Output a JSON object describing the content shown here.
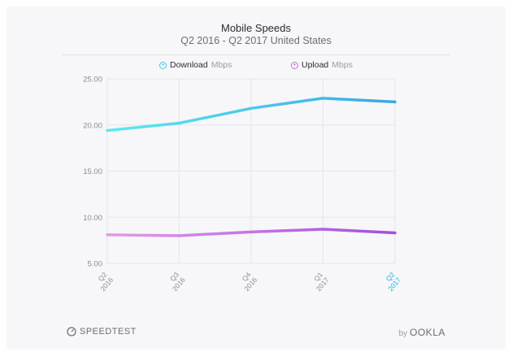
{
  "chart_data": {
    "type": "line",
    "title": "Mobile Speeds",
    "subtitle": "Q2 2016 - Q2 2017 United States",
    "categories": [
      [
        "Q2",
        "2016"
      ],
      [
        "Q3",
        "2016"
      ],
      [
        "Q4",
        "2016"
      ],
      [
        "Q1",
        "2017"
      ],
      [
        "Q2",
        "2017"
      ]
    ],
    "highlight_category_index": 4,
    "ylim": [
      5,
      25
    ],
    "yticks": [
      "25.00",
      "20.00",
      "15.00",
      "10.00",
      "5.00"
    ],
    "ytick_values": [
      25,
      20,
      15,
      10,
      5
    ],
    "grid": true,
    "legend_position": "top",
    "series": [
      {
        "name": "Download",
        "unit": "Mbps",
        "values": [
          19.4,
          20.2,
          21.8,
          22.9,
          22.5
        ],
        "color_start": "#5fe8ef",
        "color_end": "#3aa8e6"
      },
      {
        "name": "Upload",
        "unit": "Mbps",
        "values": [
          8.1,
          8.0,
          8.4,
          8.7,
          8.3
        ],
        "color_start": "#e59ae8",
        "color_end": "#a44fdc"
      }
    ]
  },
  "footer": {
    "left_brand": "SPEEDTEST",
    "right_prefix": "by",
    "right_brand": "OOKLA"
  },
  "colors": {
    "highlight": "#1bb3e6",
    "axis_text": "#8a8a96",
    "grid": "#e6e6ec"
  }
}
